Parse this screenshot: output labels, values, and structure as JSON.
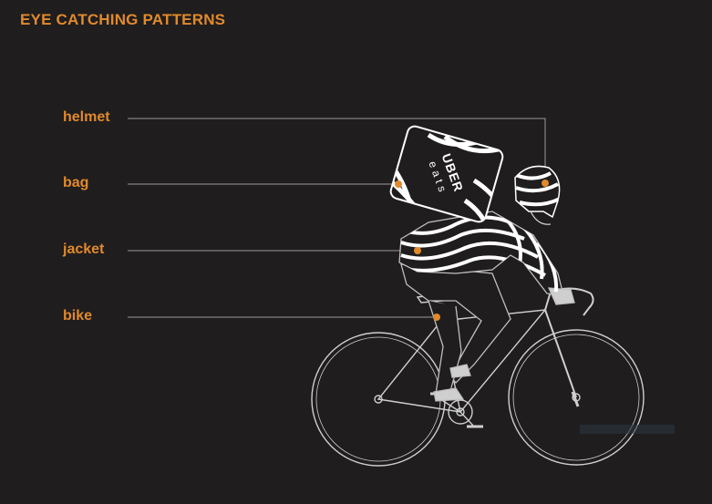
{
  "title": "EYE CATCHING PATTERNS",
  "callouts": [
    {
      "id": "helmet",
      "label": "helmet"
    },
    {
      "id": "bag",
      "label": "bag"
    },
    {
      "id": "jacket",
      "label": "jacket"
    },
    {
      "id": "bike",
      "label": "bike"
    }
  ],
  "bag_brand": {
    "line1": "UBER",
    "line2": "eats"
  },
  "colors": {
    "background": "#1f1d1e",
    "accent": "#e08a2c",
    "line": "#cfcfcf",
    "stripe": "#ffffff"
  }
}
